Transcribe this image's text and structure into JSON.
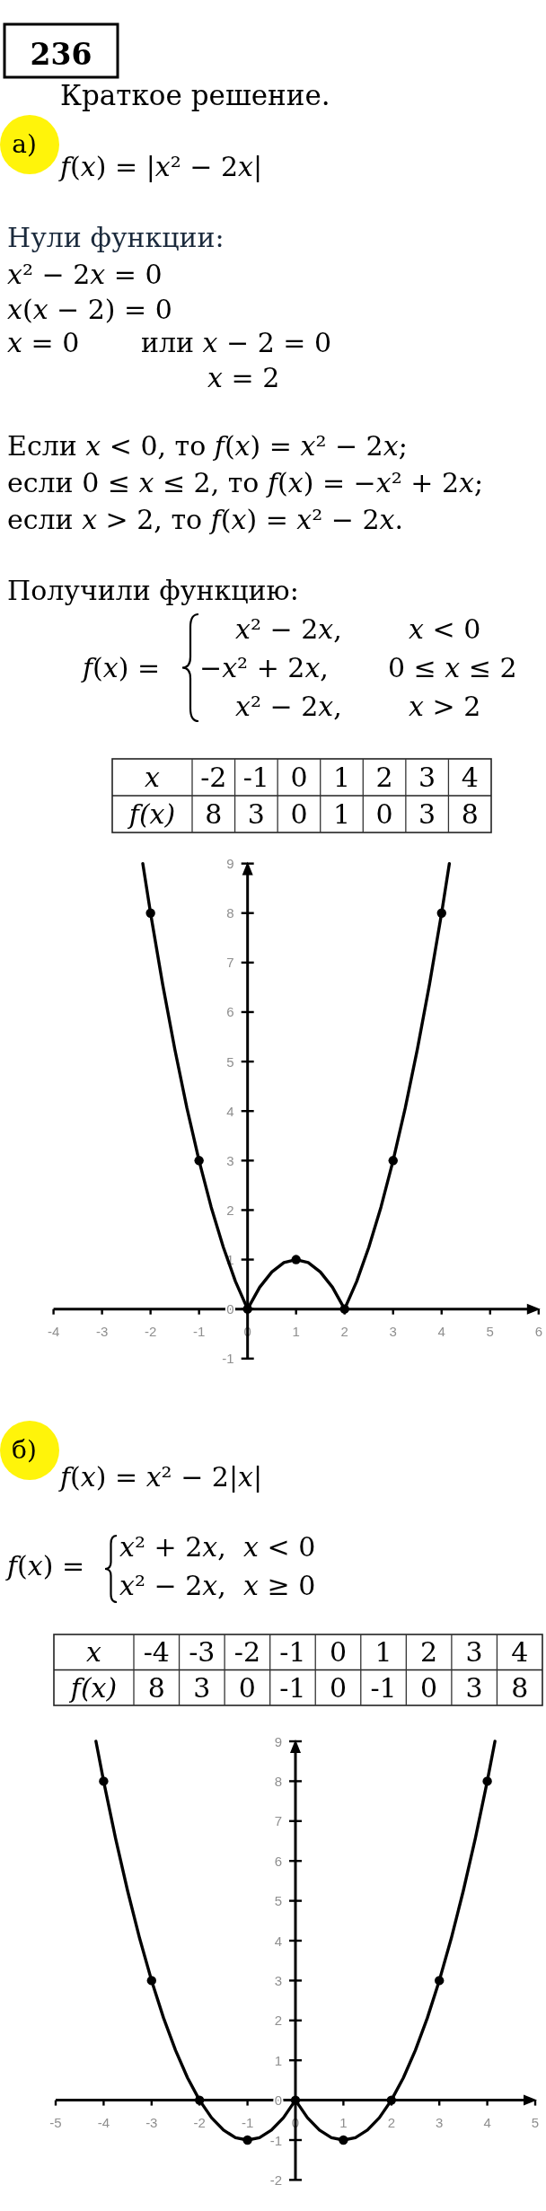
{
  "chart_data": [
    {
      "type": "other",
      "title": "236",
      "subtitle": "Краткое решение."
    },
    {
      "type": "line",
      "title": "а)",
      "annotations": [
        "f(x) = |x² − 2x|",
        "Нули функции:",
        "x² − 2x = 0",
        "x(x − 2) = 0",
        "x = 0",
        "или x − 2 = 0",
        "x = 2",
        "Если x < 0, то f(x) = x² − 2x;",
        "если 0 ≤ x ≤ 2, то f(x) = −x² + 2x;",
        "если x > 2, то f(x) = x² − 2x.",
        "Получили функцию:",
        "f(x) =",
        "x² − 2x,",
        "x < 0",
        "−x² + 2x,",
        "0 ≤ x ≤ 2",
        "x² − 2x,",
        "x > 2",
        "x",
        "-2",
        "-1",
        "0",
        "1",
        "2",
        "3",
        "4",
        "f(x)",
        "8",
        "3",
        "0",
        "1",
        "0",
        "3",
        "8"
      ],
      "xlim": [
        -4,
        6
      ],
      "ylim": [
        -1,
        9
      ],
      "xticks": [
        -4,
        -3,
        -2,
        -1,
        0,
        1,
        2,
        3,
        4,
        5,
        6
      ],
      "yticks": [
        -1,
        0,
        1,
        2,
        3,
        4,
        5,
        6,
        7,
        8,
        9
      ],
      "series": [
        {
          "type": "line",
          "color": "#000000",
          "x": [
            -2.16,
            -2,
            -1.75,
            -1.5,
            -1.25,
            -1,
            -0.75,
            -0.5,
            -0.25,
            0,
            0.25,
            0.5,
            0.75,
            1,
            1.25,
            1.5,
            1.75,
            2,
            2.25,
            2.5,
            2.75,
            3,
            3.25,
            3.5,
            3.75,
            4,
            4.16
          ],
          "values": [
            9,
            8,
            6.56,
            5.25,
            4.06,
            3,
            2.06,
            1.25,
            0.56,
            0,
            0.44,
            0.75,
            0.94,
            1,
            0.94,
            0.75,
            0.44,
            0,
            0.56,
            1.25,
            2.06,
            3,
            4.06,
            5.25,
            6.56,
            8,
            9
          ]
        },
        {
          "type": "scatter",
          "color": "#000000",
          "marker": "circle",
          "x": [
            -2,
            -1,
            0,
            1,
            2,
            3,
            4
          ],
          "values": [
            8,
            3,
            0,
            1,
            0,
            3,
            8
          ]
        }
      ]
    },
    {
      "type": "line",
      "title": "б)",
      "annotations": [
        "f(x) = x² − 2|x|",
        "f(x) =",
        "x² + 2x,",
        "x < 0",
        "x² − 2x,",
        "x ≥ 0",
        "x",
        "-4",
        "-3",
        "-2",
        "-1",
        "0",
        "1",
        "2",
        "3",
        "4",
        "f(x)",
        "8",
        "3",
        "0",
        "-1",
        "0",
        "-1",
        "0",
        "3",
        "8"
      ],
      "xlim": [
        -5,
        5
      ],
      "ylim": [
        -2,
        9
      ],
      "xticks": [
        -5,
        -4,
        -3,
        -2,
        -1,
        0,
        1,
        2,
        3,
        4,
        5
      ],
      "yticks": [
        -2,
        -1,
        0,
        1,
        2,
        3,
        4,
        5,
        6,
        7,
        8,
        9
      ],
      "series": [
        {
          "type": "line",
          "color": "#000000",
          "x": [
            -4.16,
            -4,
            -3.75,
            -3.5,
            -3.25,
            -3,
            -2.75,
            -2.5,
            -2.25,
            -2,
            -1.75,
            -1.5,
            -1.25,
            -1,
            -0.75,
            -0.5,
            -0.25,
            0,
            0.25,
            0.5,
            0.75,
            1,
            1.25,
            1.5,
            1.75,
            2,
            2.25,
            2.5,
            2.75,
            3,
            3.25,
            3.5,
            3.75,
            4,
            4.16
          ],
          "values": [
            9,
            8,
            6.56,
            5.25,
            4.06,
            3,
            2.06,
            1.25,
            0.56,
            0,
            -0.44,
            -0.75,
            -0.94,
            -1,
            -0.94,
            -0.75,
            -0.44,
            0,
            -0.44,
            -0.75,
            -0.94,
            -1,
            -0.94,
            -0.75,
            -0.44,
            0,
            0.56,
            1.25,
            2.06,
            3,
            4.06,
            5.25,
            6.56,
            8,
            9
          ]
        },
        {
          "type": "scatter",
          "color": "#000000",
          "marker": "circle",
          "x": [
            -4,
            -3,
            -2,
            -1,
            0,
            1,
            2,
            3,
            4
          ],
          "values": [
            8,
            3,
            0,
            -1,
            0,
            -1,
            0,
            3,
            8
          ]
        }
      ]
    }
  ]
}
